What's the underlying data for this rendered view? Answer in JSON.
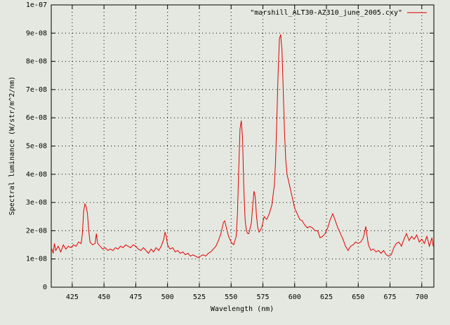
{
  "chart_data": {
    "type": "line",
    "x_label": "Wavelength (nm)",
    "y_label": "Spectral luminance (W/str/m^2/nm)",
    "xlim": [
      408.5,
      709.5
    ],
    "xticks": [
      425,
      450,
      475,
      500,
      525,
      550,
      575,
      600,
      625,
      650,
      675,
      700
    ],
    "ylim": [
      0,
      1e-07
    ],
    "yticks": [
      0,
      {
        "value": 1e-08,
        "label": "1e-08"
      },
      {
        "value": 2e-08,
        "label": "2e-08"
      },
      {
        "value": 3e-08,
        "label": "3e-08"
      },
      {
        "value": 4e-08,
        "label": "4e-08"
      },
      {
        "value": 5e-08,
        "label": "5e-08"
      },
      {
        "value": 6e-08,
        "label": "6e-08"
      },
      {
        "value": 7e-08,
        "label": "7e-08"
      },
      {
        "value": 8e-08,
        "label": "8e-08"
      },
      {
        "value": 9e-08,
        "label": "9e-08"
      },
      {
        "value": 1e-07,
        "label": "1e-07"
      }
    ],
    "grid": true,
    "legend": "top-right",
    "x": [
      409,
      410,
      411,
      412,
      414,
      416,
      418,
      420,
      422,
      424,
      426,
      428,
      430,
      432,
      433,
      434,
      435,
      436,
      437,
      438,
      439,
      441,
      443,
      444,
      445,
      447,
      449,
      451,
      453,
      455,
      457,
      459,
      461,
      463,
      465,
      467,
      469,
      471,
      473,
      475,
      477,
      479,
      481,
      483,
      485,
      487,
      489,
      491,
      493,
      495,
      497,
      498,
      499,
      500,
      502,
      504,
      506,
      508,
      510,
      512,
      514,
      516,
      518,
      520,
      522,
      524,
      526,
      528,
      530,
      532,
      534,
      536,
      538,
      540,
      542,
      544,
      545,
      546,
      548,
      550,
      552,
      554,
      555,
      556,
      557,
      558,
      559,
      560,
      561,
      562,
      563,
      564,
      566,
      567,
      568,
      569,
      570,
      571,
      572,
      574,
      576,
      578,
      580,
      582,
      584,
      585,
      586,
      587,
      588,
      589,
      590,
      591,
      592,
      593,
      594,
      596,
      598,
      600,
      602,
      604,
      606,
      608,
      610,
      612,
      614,
      616,
      618,
      620,
      622,
      624,
      626,
      628,
      630,
      632,
      634,
      636,
      638,
      640,
      642,
      644,
      646,
      648,
      650,
      652,
      654,
      656,
      657,
      658,
      660,
      662,
      664,
      666,
      668,
      670,
      672,
      674,
      676,
      678,
      680,
      682,
      684,
      686,
      688,
      690,
      692,
      694,
      696,
      698,
      700,
      702,
      704,
      706,
      708,
      709
    ],
    "series": [
      {
        "name": "\"marshill_ALT30-AZ310_june_2005.cxy\"",
        "color": "#e00000",
        "values": [
          1.36e-08,
          1.2e-08,
          1.55e-08,
          1.3e-08,
          1.45e-08,
          1.25e-08,
          1.5e-08,
          1.35e-08,
          1.45e-08,
          1.4e-08,
          1.5e-08,
          1.45e-08,
          1.6e-08,
          1.55e-08,
          1.9e-08,
          2.7e-08,
          2.95e-08,
          2.85e-08,
          2.6e-08,
          2e-08,
          1.6e-08,
          1.5e-08,
          1.55e-08,
          1.9e-08,
          1.55e-08,
          1.45e-08,
          1.35e-08,
          1.4e-08,
          1.3e-08,
          1.35e-08,
          1.3e-08,
          1.4e-08,
          1.35e-08,
          1.45e-08,
          1.4e-08,
          1.5e-08,
          1.45e-08,
          1.4e-08,
          1.5e-08,
          1.45e-08,
          1.35e-08,
          1.3e-08,
          1.4e-08,
          1.3e-08,
          1.2e-08,
          1.35e-08,
          1.25e-08,
          1.4e-08,
          1.3e-08,
          1.45e-08,
          1.7e-08,
          1.95e-08,
          1.8e-08,
          1.5e-08,
          1.35e-08,
          1.4e-08,
          1.25e-08,
          1.3e-08,
          1.2e-08,
          1.25e-08,
          1.15e-08,
          1.2e-08,
          1.1e-08,
          1.15e-08,
          1.1e-08,
          1.05e-08,
          1.1e-08,
          1.15e-08,
          1.1e-08,
          1.2e-08,
          1.25e-08,
          1.35e-08,
          1.45e-08,
          1.65e-08,
          1.9e-08,
          2.3e-08,
          2.35e-08,
          2.15e-08,
          1.8e-08,
          1.6e-08,
          1.5e-08,
          1.8e-08,
          2.6e-08,
          4.2e-08,
          5.6e-08,
          5.9e-08,
          5.3e-08,
          3.5e-08,
          2.4e-08,
          2e-08,
          1.9e-08,
          1.9e-08,
          2.3e-08,
          2.9e-08,
          3.4e-08,
          3.2e-08,
          2.5e-08,
          2.1e-08,
          1.95e-08,
          2.1e-08,
          2.5e-08,
          2.4e-08,
          2.6e-08,
          2.9e-08,
          3.6e-08,
          4.5e-08,
          6e-08,
          7.6e-08,
          8.8e-08,
          8.95e-08,
          8.4e-08,
          7e-08,
          5.5e-08,
          4.5e-08,
          4e-08,
          3.6e-08,
          3.2e-08,
          2.8e-08,
          2.6e-08,
          2.4e-08,
          2.35e-08,
          2.2e-08,
          2.1e-08,
          2.15e-08,
          2.1e-08,
          2e-08,
          2e-08,
          1.75e-08,
          1.8e-08,
          1.9e-08,
          2.1e-08,
          2.4e-08,
          2.6e-08,
          2.35e-08,
          2.1e-08,
          1.9e-08,
          1.7e-08,
          1.45e-08,
          1.3e-08,
          1.45e-08,
          1.5e-08,
          1.6e-08,
          1.55e-08,
          1.6e-08,
          1.75e-08,
          2.15e-08,
          1.8e-08,
          1.5e-08,
          1.3e-08,
          1.35e-08,
          1.25e-08,
          1.3e-08,
          1.2e-08,
          1.3e-08,
          1.15e-08,
          1.1e-08,
          1.15e-08,
          1.4e-08,
          1.55e-08,
          1.6e-08,
          1.45e-08,
          1.7e-08,
          1.9e-08,
          1.65e-08,
          1.8e-08,
          1.7e-08,
          1.85e-08,
          1.6e-08,
          1.7e-08,
          1.55e-08,
          1.8e-08,
          1.45e-08,
          1.75e-08,
          1.45e-08
        ]
      }
    ]
  }
}
